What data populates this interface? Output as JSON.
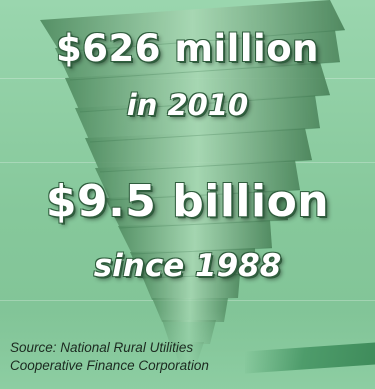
{
  "top_fragment": "",
  "headline_1": "$626 million",
  "subline_1": "in 2010",
  "headline_2": "$9.5 billion",
  "subline_2": "since 1988",
  "source_line_1": "Source: National Rural Utilities",
  "source_line_2": "Cooperative Finance Corporation",
  "colors": {
    "background": "#8fcfa4",
    "money_green": "#5f9c6f",
    "text_white": "#ffffff",
    "text_outline": "#2f5d3d",
    "source_text": "#1c2a20"
  },
  "illustration": "stack-of-cash-tornado-icon"
}
